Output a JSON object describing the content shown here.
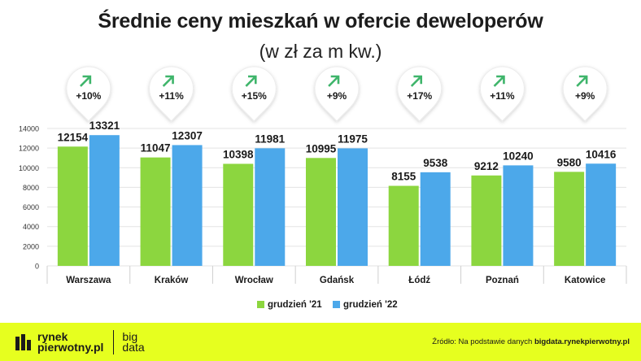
{
  "title": "Średnie ceny mieszkań w ofercie deweloperów",
  "subtitle": "(w zł za m kw.)",
  "chart_data": {
    "type": "bar",
    "categories": [
      "Warszawa",
      "Kraków",
      "Wrocław",
      "Gdańsk",
      "Łódź",
      "Poznań",
      "Katowice"
    ],
    "series": [
      {
        "name": "grudzień '21",
        "values": [
          12154,
          11047,
          10398,
          10995,
          8155,
          9212,
          9580
        ],
        "color": "#8cd63f"
      },
      {
        "name": "grudzień '22",
        "values": [
          13321,
          12307,
          11981,
          11975,
          9538,
          10240,
          10416
        ],
        "color": "#4ca8ea"
      }
    ],
    "changes": [
      "+10%",
      "+11%",
      "+15%",
      "+9%",
      "+17%",
      "+11%",
      "+9%"
    ],
    "yticks": [
      0,
      2000,
      4000,
      6000,
      8000,
      10000,
      12000,
      14000
    ],
    "ylim": [
      0,
      14000
    ],
    "grid": true,
    "legend": "bottom-center"
  },
  "footer": {
    "logo_line1": "rynek",
    "logo_line2": "pierwotny.pl",
    "big_line1": "big",
    "big_line2": "data",
    "source_prefix": "Źródło: Na podstawie danych",
    "source_site": "bigdata.rynekpierwotny.pl"
  },
  "colors": {
    "footer_bg": "#e6ff1f",
    "arrow": "#3fb56b",
    "series1": "#8cd63f",
    "series2": "#4ca8ea"
  }
}
